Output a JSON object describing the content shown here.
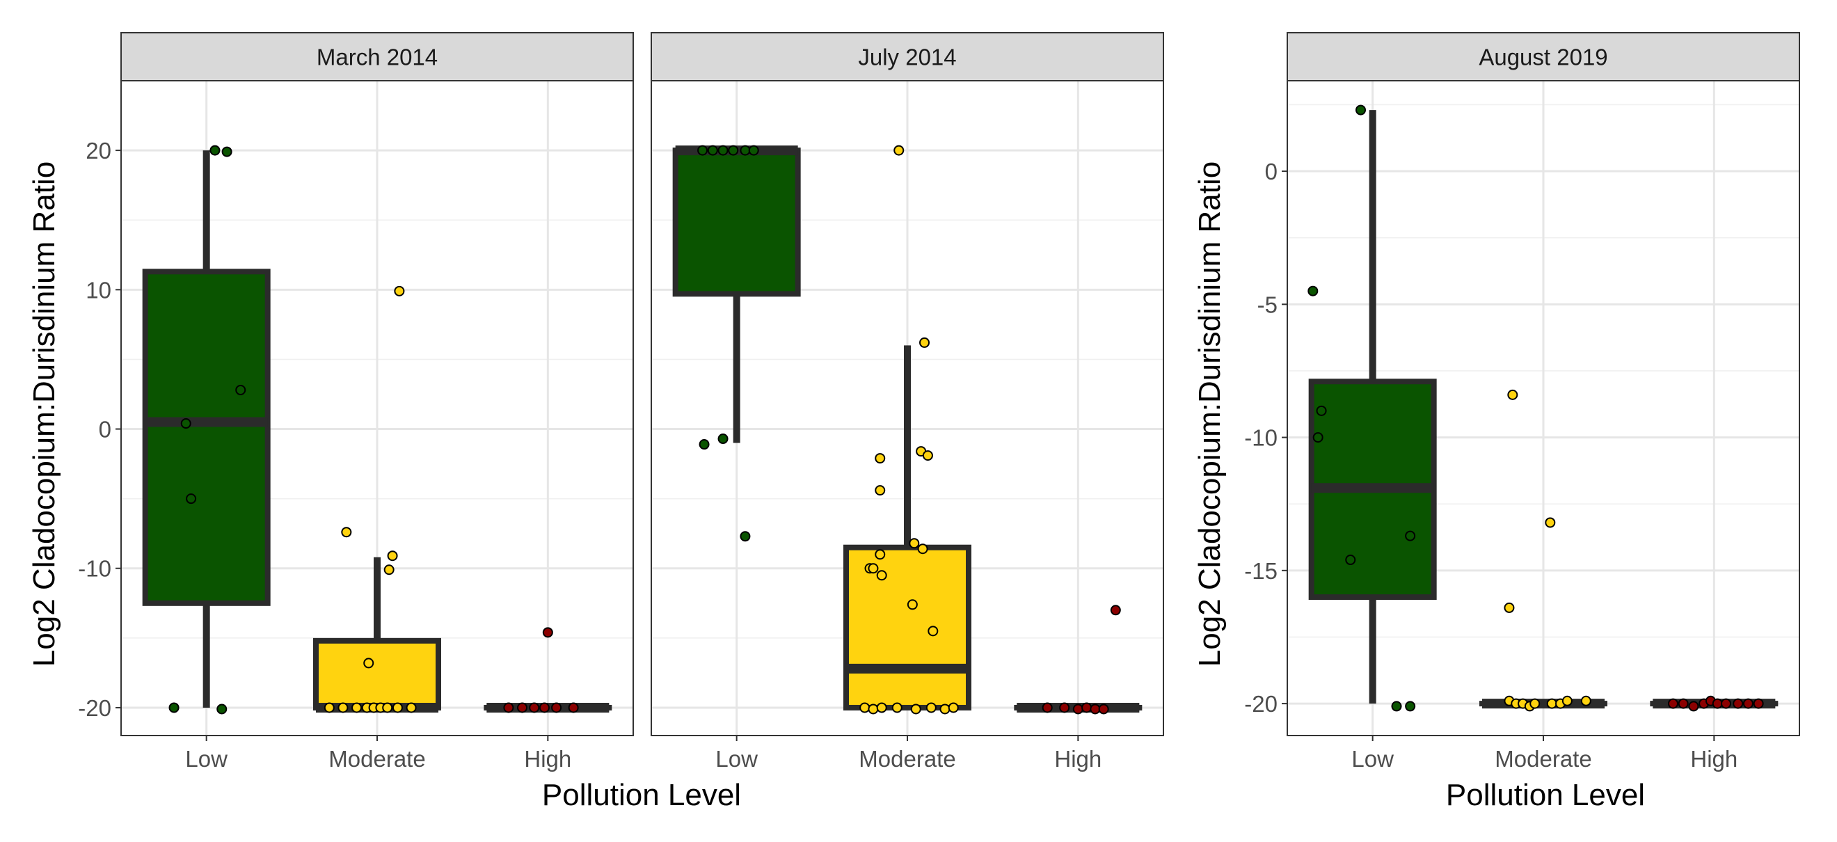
{
  "colors": {
    "Low": "#0a5400",
    "Moderate": "#ffd30f",
    "High": "#8b0000",
    "box_line": "#2b2b2b"
  },
  "chart_data": {
    "type": "boxplot",
    "xlabel": "Pollution Level",
    "ylabel": "Log2 Cladocopium:Durisdinium Ratio",
    "categories": [
      "Low",
      "Moderate",
      "High"
    ],
    "panel_groups": [
      {
        "panels": [
          0,
          1
        ],
        "shared_y_axis": true,
        "ylim": [
          -22,
          25
        ],
        "yticks": [
          -20,
          -10,
          0,
          10,
          20
        ]
      },
      {
        "panels": [
          2
        ],
        "shared_y_axis": false,
        "ylim": [
          -21.2,
          3.4
        ],
        "yticks": [
          -20,
          -15,
          -10,
          -5,
          0
        ]
      }
    ],
    "panels": [
      {
        "title": "March 2014",
        "boxes": [
          {
            "category": "Low",
            "min": -20,
            "q1": -12.5,
            "median": 0.5,
            "q3": 11.3,
            "max": 20
          },
          {
            "category": "Moderate",
            "min": -20,
            "q1": -20,
            "median": -20,
            "q3": -15.2,
            "max": -9.2
          },
          {
            "category": "High",
            "min": -20,
            "q1": -20,
            "median": -20,
            "q3": -20,
            "max": -20
          }
        ],
        "points": {
          "Low": [
            [
              0.05,
              20
            ],
            [
              0.12,
              19.9
            ],
            [
              -0.12,
              0.4
            ],
            [
              -0.09,
              -5
            ],
            [
              0.2,
              2.8
            ],
            [
              -0.19,
              -20
            ],
            [
              0.09,
              -20.1
            ]
          ],
          "Moderate": [
            [
              -0.18,
              -7.4
            ],
            [
              0.13,
              9.9
            ],
            [
              0.09,
              -9.1
            ],
            [
              0.07,
              -10.1
            ],
            [
              -0.05,
              -16.8
            ],
            [
              -0.28,
              -20
            ],
            [
              -0.2,
              -20
            ],
            [
              -0.12,
              -20
            ],
            [
              -0.06,
              -20
            ],
            [
              -0.02,
              -20
            ],
            [
              0.02,
              -20
            ],
            [
              0.06,
              -20
            ],
            [
              0.12,
              -20
            ],
            [
              0.2,
              -20
            ]
          ],
          "High": [
            [
              0,
              -14.6
            ],
            [
              -0.23,
              -20
            ],
            [
              -0.15,
              -20
            ],
            [
              -0.08,
              -20
            ],
            [
              -0.02,
              -20
            ],
            [
              0.05,
              -20
            ],
            [
              0.15,
              -20
            ]
          ]
        }
      },
      {
        "title": "July 2014",
        "boxes": [
          {
            "category": "Low",
            "min": -1,
            "q1": 9.7,
            "median": 20,
            "q3": 20,
            "max": 20
          },
          {
            "category": "Moderate",
            "min": -20,
            "q1": -20,
            "median": -17.2,
            "q3": -8.5,
            "max": 6
          },
          {
            "category": "High",
            "min": -20,
            "q1": -20,
            "median": -20,
            "q3": -20,
            "max": -20
          }
        ],
        "points": {
          "Low": [
            [
              -0.2,
              20
            ],
            [
              -0.14,
              20
            ],
            [
              -0.08,
              20
            ],
            [
              -0.02,
              20
            ],
            [
              0.05,
              20
            ],
            [
              0.1,
              20
            ],
            [
              -0.19,
              -1.1
            ],
            [
              -0.08,
              -0.7
            ],
            [
              0.05,
              -7.7
            ]
          ],
          "Moderate": [
            [
              -0.05,
              20
            ],
            [
              0.1,
              6.2
            ],
            [
              -0.16,
              -2.1
            ],
            [
              0.08,
              -1.6
            ],
            [
              0.12,
              -1.9
            ],
            [
              -0.16,
              -4.4
            ],
            [
              0.04,
              -8.2
            ],
            [
              0.09,
              -8.6
            ],
            [
              -0.16,
              -9
            ],
            [
              -0.22,
              -10
            ],
            [
              -0.2,
              -10
            ],
            [
              -0.15,
              -10.5
            ],
            [
              0.03,
              -12.6
            ],
            [
              0.15,
              -14.5
            ],
            [
              -0.25,
              -20
            ],
            [
              -0.2,
              -20.1
            ],
            [
              -0.15,
              -20
            ],
            [
              -0.06,
              -20
            ],
            [
              0.05,
              -20.1
            ],
            [
              0.14,
              -20
            ],
            [
              0.22,
              -20.1
            ],
            [
              0.27,
              -20
            ]
          ],
          "High": [
            [
              0.22,
              -13
            ],
            [
              -0.18,
              -20
            ],
            [
              -0.08,
              -20
            ],
            [
              0,
              -20.1
            ],
            [
              0.05,
              -20
            ],
            [
              0.1,
              -20.1
            ],
            [
              0.15,
              -20.1
            ]
          ]
        }
      },
      {
        "title": "August 2019",
        "boxes": [
          {
            "category": "Low",
            "min": -20,
            "q1": -16,
            "median": -11.9,
            "q3": -7.9,
            "max": 2.3
          },
          {
            "category": "Moderate",
            "min": -20,
            "q1": -20,
            "median": -20,
            "q3": -20,
            "max": -20
          },
          {
            "category": "High",
            "min": -20,
            "q1": -20,
            "median": -20,
            "q3": -20,
            "max": -20
          }
        ],
        "points": {
          "Low": [
            [
              -0.07,
              2.3
            ],
            [
              -0.35,
              -4.5
            ],
            [
              -0.3,
              -9
            ],
            [
              -0.32,
              -10
            ],
            [
              -0.13,
              -14.6
            ],
            [
              0.22,
              -13.7
            ],
            [
              0.14,
              -20.1
            ],
            [
              0.22,
              -20.1
            ]
          ],
          "Moderate": [
            [
              -0.18,
              -8.4
            ],
            [
              0.04,
              -13.2
            ],
            [
              -0.2,
              -16.4
            ],
            [
              -0.2,
              -19.9
            ],
            [
              -0.16,
              -20
            ],
            [
              -0.12,
              -20
            ],
            [
              -0.08,
              -20.1
            ],
            [
              -0.05,
              -20
            ],
            [
              0.05,
              -20
            ],
            [
              0.1,
              -20
            ],
            [
              0.14,
              -19.9
            ],
            [
              0.25,
              -19.9
            ]
          ],
          "High": [
            [
              -0.24,
              -20
            ],
            [
              -0.18,
              -20
            ],
            [
              -0.12,
              -20.1
            ],
            [
              -0.06,
              -20
            ],
            [
              -0.02,
              -19.9
            ],
            [
              0.02,
              -20
            ],
            [
              0.07,
              -20
            ],
            [
              0.14,
              -20
            ],
            [
              0.2,
              -20
            ],
            [
              0.26,
              -20
            ]
          ]
        }
      }
    ]
  }
}
